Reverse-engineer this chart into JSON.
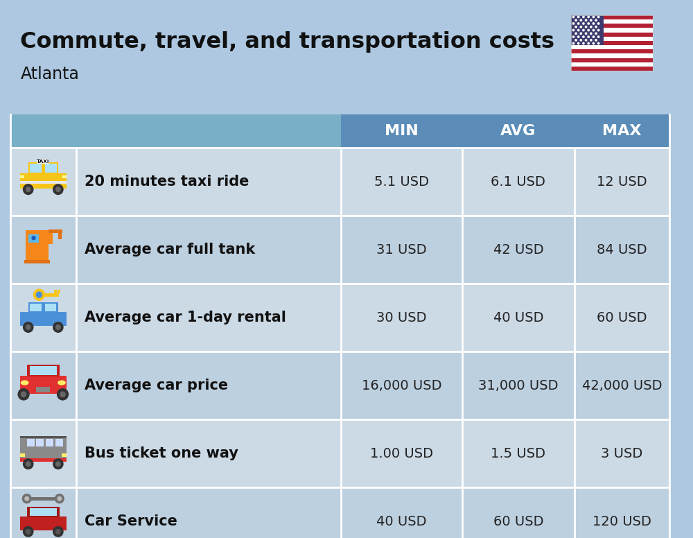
{
  "title": "Commute, travel, and transportation costs",
  "subtitle": "Atlanta",
  "background_color": "#adc8e0",
  "header_color": "#5b8db8",
  "row_color_even": "#ccdae6",
  "row_color_odd": "#bdd0e0",
  "header_text_color": "#ffffff",
  "cell_text_color": "#222222",
  "label_text_color": "#111111",
  "columns": [
    "MIN",
    "AVG",
    "MAX"
  ],
  "rows": [
    {
      "label": "20 minutes taxi ride",
      "min": "5.1 USD",
      "avg": "6.1 USD",
      "max": "12 USD"
    },
    {
      "label": "Average car full tank",
      "min": "31 USD",
      "avg": "42 USD",
      "max": "84 USD"
    },
    {
      "label": "Average car 1-day rental",
      "min": "30 USD",
      "avg": "40 USD",
      "max": "60 USD"
    },
    {
      "label": "Average car price",
      "min": "16,000 USD",
      "avg": "31,000 USD",
      "max": "42,000 USD"
    },
    {
      "label": "Bus ticket one way",
      "min": "1.00 USD",
      "avg": "1.5 USD",
      "max": "3 USD"
    },
    {
      "label": "Car Service",
      "min": "40 USD",
      "avg": "60 USD",
      "max": "120 USD"
    }
  ],
  "title_fontsize": 23,
  "subtitle_fontsize": 17,
  "header_fontsize": 16,
  "cell_fontsize": 14,
  "label_fontsize": 15
}
